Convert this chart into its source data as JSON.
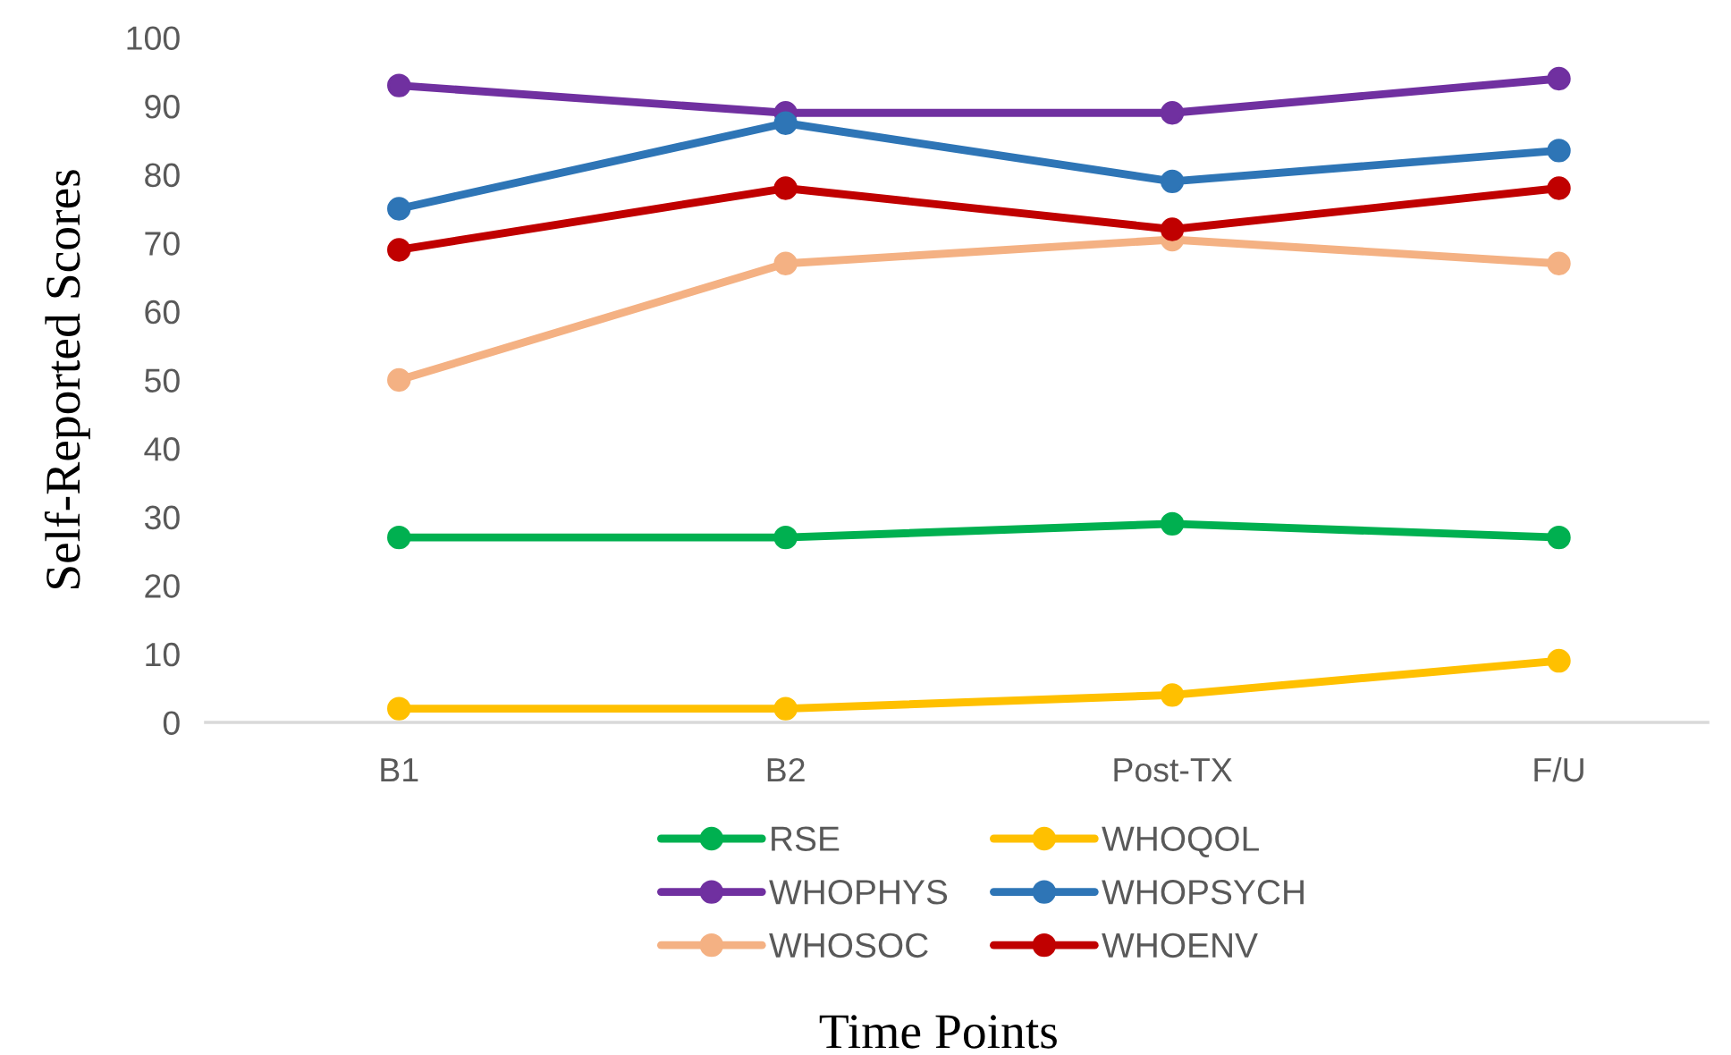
{
  "chart_data": {
    "type": "line",
    "xlabel": "Time Points",
    "ylabel": "Self-Reported Scores",
    "categories": [
      "B1",
      "B2",
      "Post-TX",
      "F/U"
    ],
    "series": [
      {
        "name": "RSE",
        "color": "#00b050",
        "values": [
          27,
          27,
          29,
          27
        ]
      },
      {
        "name": "WHOQOL",
        "color": "#ffc000",
        "values": [
          2,
          2,
          4,
          9
        ]
      },
      {
        "name": "WHOPHYS",
        "color": "#7030a0",
        "values": [
          93,
          89,
          89,
          94
        ]
      },
      {
        "name": "WHOPSYCH",
        "color": "#2e75b6",
        "values": [
          75,
          87.5,
          79,
          83.5
        ]
      },
      {
        "name": "WHOSOC",
        "color": "#f4b183",
        "values": [
          50,
          67,
          70.5,
          67
        ]
      },
      {
        "name": "WHOENV",
        "color": "#c00000",
        "values": [
          69,
          78,
          72,
          78
        ]
      }
    ],
    "ylim": [
      0,
      100
    ],
    "yticks": [
      0,
      10,
      20,
      30,
      40,
      50,
      60,
      70,
      80,
      90,
      100
    ],
    "grid": false,
    "legend": "bottom",
    "marker": "circle",
    "line_style": "solid"
  }
}
